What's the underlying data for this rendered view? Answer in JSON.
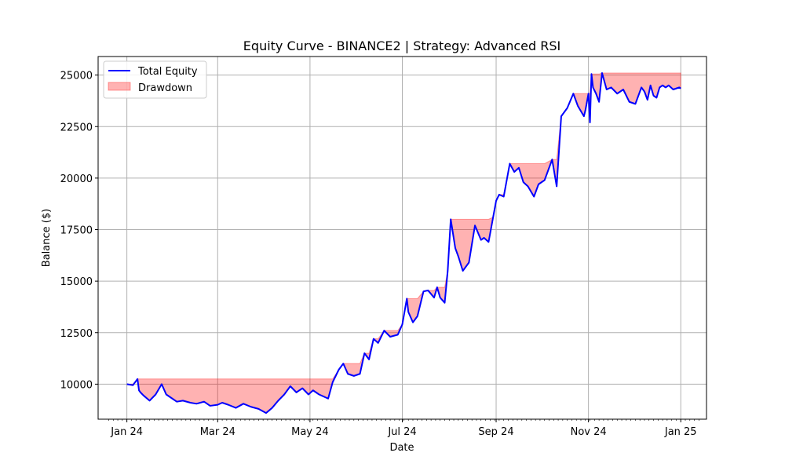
{
  "chart_data": {
    "type": "line",
    "title": "Equity Curve - BINANCE2 | Strategy: Advanced RSI",
    "xlabel": "Date",
    "ylabel": "Balance ($)",
    "xlim": [
      "2023-12-13",
      "2025-01-18"
    ],
    "ylim": [
      8300,
      25900
    ],
    "grid": true,
    "legend_position": "top-left",
    "x_ticks": [
      {
        "date": "2024-01-01",
        "label": "Jan 24"
      },
      {
        "date": "2024-03-01",
        "label": "Mar 24"
      },
      {
        "date": "2024-05-01",
        "label": "May 24"
      },
      {
        "date": "2024-07-01",
        "label": "Jul 24"
      },
      {
        "date": "2024-09-01",
        "label": "Sep 24"
      },
      {
        "date": "2024-11-01",
        "label": "Nov 24"
      },
      {
        "date": "2025-01-01",
        "label": "Jan 25"
      }
    ],
    "y_ticks": [
      10000,
      12500,
      15000,
      17500,
      20000,
      22500,
      25000
    ],
    "series": [
      {
        "name": "Total Equity",
        "color": "#0000ff",
        "x": [
          "2024-01-01",
          "2024-01-05",
          "2024-01-08",
          "2024-01-09",
          "2024-01-10",
          "2024-01-12",
          "2024-01-16",
          "2024-01-20",
          "2024-01-24",
          "2024-01-27",
          "2024-01-31",
          "2024-02-03",
          "2024-02-07",
          "2024-02-12",
          "2024-02-16",
          "2024-02-21",
          "2024-02-25",
          "2024-03-01",
          "2024-03-04",
          "2024-03-08",
          "2024-03-13",
          "2024-03-18",
          "2024-03-23",
          "2024-03-28",
          "2024-04-02",
          "2024-04-06",
          "2024-04-10",
          "2024-04-14",
          "2024-04-18",
          "2024-04-22",
          "2024-04-26",
          "2024-04-30",
          "2024-05-03",
          "2024-05-07",
          "2024-05-10",
          "2024-05-13",
          "2024-05-16",
          "2024-05-20",
          "2024-05-23",
          "2024-05-26",
          "2024-05-30",
          "2024-06-03",
          "2024-06-06",
          "2024-06-09",
          "2024-06-12",
          "2024-06-15",
          "2024-06-19",
          "2024-06-23",
          "2024-06-28",
          "2024-07-01",
          "2024-07-04",
          "2024-07-05",
          "2024-07-08",
          "2024-07-11",
          "2024-07-15",
          "2024-07-18",
          "2024-07-22",
          "2024-07-24",
          "2024-07-26",
          "2024-07-29",
          "2024-07-31",
          "2024-08-02",
          "2024-08-05",
          "2024-08-07",
          "2024-08-10",
          "2024-08-14",
          "2024-08-18",
          "2024-08-22",
          "2024-08-24",
          "2024-08-27",
          "2024-08-30",
          "2024-09-01",
          "2024-09-03",
          "2024-09-06",
          "2024-09-10",
          "2024-09-13",
          "2024-09-16",
          "2024-09-19",
          "2024-09-22",
          "2024-09-26",
          "2024-09-29",
          "2024-10-03",
          "2024-10-08",
          "2024-10-11",
          "2024-10-14",
          "2024-10-18",
          "2024-10-22",
          "2024-10-25",
          "2024-10-29",
          "2024-10-30",
          "2024-11-01",
          "2024-11-02",
          "2024-11-03",
          "2024-11-04",
          "2024-11-06",
          "2024-11-08",
          "2024-11-10",
          "2024-11-13",
          "2024-11-16",
          "2024-11-20",
          "2024-11-24",
          "2024-11-28",
          "2024-12-02",
          "2024-12-06",
          "2024-12-08",
          "2024-12-10",
          "2024-12-12",
          "2024-12-14",
          "2024-12-16",
          "2024-12-18",
          "2024-12-20",
          "2024-12-22",
          "2024-12-24",
          "2024-12-27",
          "2024-12-31",
          "2025-01-01"
        ],
        "y": [
          10000,
          9950,
          10250,
          9700,
          9600,
          9450,
          9200,
          9500,
          10000,
          9500,
          9300,
          9150,
          9200,
          9100,
          9050,
          9150,
          8950,
          9000,
          9100,
          9000,
          8850,
          9050,
          8900,
          8800,
          8600,
          8850,
          9200,
          9500,
          9900,
          9600,
          9800,
          9500,
          9700,
          9500,
          9400,
          9300,
          10100,
          10700,
          11000,
          10500,
          10400,
          10500,
          11500,
          11200,
          12200,
          12000,
          12600,
          12300,
          12400,
          12900,
          14150,
          13500,
          13000,
          13300,
          14500,
          14550,
          14200,
          14700,
          14200,
          13950,
          15500,
          18000,
          16600,
          16200,
          15500,
          15900,
          17700,
          17000,
          17100,
          16900,
          18100,
          18900,
          19200,
          19100,
          20700,
          20300,
          20500,
          19800,
          19600,
          19100,
          19700,
          19900,
          20900,
          19600,
          23000,
          23400,
          24100,
          23500,
          23000,
          23300,
          24100,
          22700,
          25050,
          24400,
          24100,
          23700,
          25100,
          24300,
          24400,
          24100,
          24300,
          23700,
          23600,
          24400,
          24200,
          23800,
          24500,
          24000,
          23900,
          24400,
          24500,
          24400,
          24500,
          24300,
          24400,
          24350
        ]
      }
    ],
    "drawdown": {
      "name": "Drawdown",
      "color": "#ff0000",
      "opacity": 0.3
    }
  }
}
